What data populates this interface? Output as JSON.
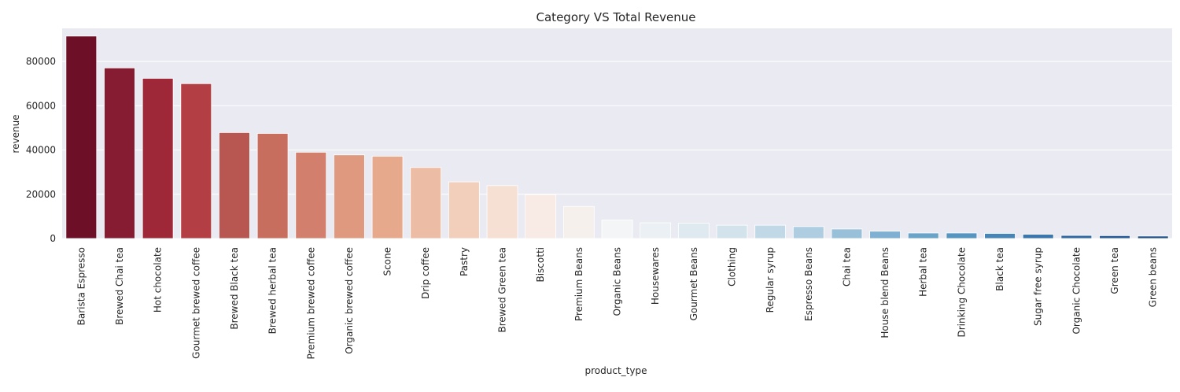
{
  "chart_data": {
    "type": "bar",
    "title": "Category VS Total Revenue",
    "xlabel": "product_type",
    "ylabel": "revenue",
    "ylim": [
      0,
      95000
    ],
    "yticks": [
      0,
      20000,
      40000,
      60000,
      80000
    ],
    "grid": true,
    "categories": [
      "Barista Espresso",
      "Brewed Chai tea",
      "Hot chocolate",
      "Gourmet brewed coffee",
      "Brewed Black tea",
      "Brewed herbal tea",
      "Premium brewed coffee",
      "Organic brewed coffee",
      "Scone",
      "Drip coffee",
      "Pastry",
      "Brewed Green tea",
      "Biscotti",
      "Premium Beans",
      "Organic Beans",
      "Housewares",
      "Gourmet Beans",
      "Clothing",
      "Regular syrup",
      "Espresso Beans",
      "Chai tea",
      "House blend Beans",
      "Herbal tea",
      "Drinking Chocolate",
      "Black tea",
      "Sugar free syrup",
      "Organic Chocolate",
      "Green tea",
      "Green beans"
    ],
    "values": [
      91500,
      77100,
      72400,
      70000,
      47900,
      47500,
      39000,
      37800,
      37200,
      32100,
      25600,
      23900,
      19800,
      14500,
      8400,
      7100,
      6900,
      6000,
      6000,
      5400,
      4300,
      3300,
      2500,
      2500,
      2300,
      1900,
      1400,
      1300,
      1100
    ],
    "colors": [
      "#6e0f28",
      "#861c32",
      "#9f2838",
      "#b33e43",
      "#b85651",
      "#c76e5f",
      "#d2806d",
      "#de997f",
      "#e6a98b",
      "#ecbca5",
      "#f1cfbb",
      "#f6e0d3",
      "#f8eae4",
      "#f6f0ed",
      "#f4f5f6",
      "#eaf0f3",
      "#dfe9f0",
      "#d3e3ec",
      "#c1d9e7",
      "#aecde1",
      "#98c1d9",
      "#7fb0d2",
      "#6aa3c8",
      "#5595c0",
      "#4586b7",
      "#3a76ac",
      "#336aa1",
      "#2a5d96",
      "#1f4f87"
    ]
  }
}
